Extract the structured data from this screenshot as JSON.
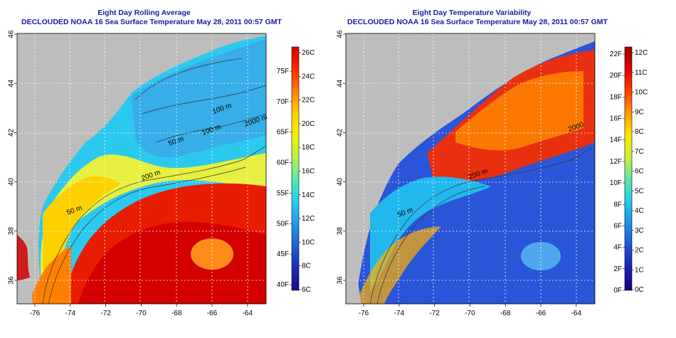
{
  "panels": [
    {
      "id": "left",
      "title_line1": "Eight Day Rolling Average",
      "title_line2": "DECLOUDED NOAA 16 Sea Surface Temperature May 28, 2011 00:57 GMT",
      "x_ticks": [
        "-76",
        "-74",
        "-72",
        "-70",
        "-68",
        "-66",
        "-64"
      ],
      "y_ticks": [
        "36",
        "38",
        "40",
        "42",
        "44",
        "46"
      ],
      "contour_labels": [
        "50 m",
        "200 m",
        "100 m",
        "100 m",
        "2000 m",
        "50 m"
      ],
      "colorbar": {
        "celsius": [
          "26C",
          "24C",
          "22C",
          "20C",
          "18C",
          "16C",
          "14C",
          "12C",
          "10C",
          "8C",
          "6C"
        ],
        "fahrenheit": [
          "75F",
          "70F",
          "65F",
          "60F",
          "55F",
          "50F",
          "45F",
          "40F"
        ],
        "colors": [
          "#d40000",
          "#ff2a00",
          "#ff7f00",
          "#ffd000",
          "#f2f200",
          "#b8f04a",
          "#55e8b0",
          "#22d0ee",
          "#1e9be8",
          "#1f5fd6",
          "#1b2bb8",
          "#1a0a8c"
        ]
      }
    },
    {
      "id": "right",
      "title_line1": "Eight Day Temperature Variability",
      "title_line2": "DECLOUDED NOAA 16 Sea Surface Temperature May 28, 2011 00:57 GMT",
      "x_ticks": [
        "-76",
        "-74",
        "-72",
        "-70",
        "-68",
        "-66",
        "-64"
      ],
      "y_ticks": [
        "36",
        "38",
        "40",
        "42",
        "44",
        "46"
      ],
      "contour_labels": [
        "50 m",
        "200 m",
        "2000"
      ],
      "colorbar": {
        "celsius": [
          "12C",
          "11C",
          "10C",
          "9C",
          "8C",
          "7C",
          "6C",
          "5C",
          "4C",
          "3C",
          "2C",
          "1C",
          "0C"
        ],
        "fahrenheit": [
          "22F",
          "20F",
          "18F",
          "16F",
          "14F",
          "12F",
          "10F",
          "8F",
          "6F",
          "4F",
          "2F",
          "0F"
        ],
        "colors": [
          "#a00000",
          "#e00000",
          "#ff4000",
          "#ff9a00",
          "#ffe600",
          "#c8f03c",
          "#5ae6a8",
          "#1ecbf0",
          "#1e8fe8",
          "#1f52d6",
          "#1a22b4",
          "#14007a"
        ]
      }
    }
  ],
  "colors": {
    "title": "#1a1aa6",
    "land": "#bdbdbd",
    "contour": "#333333",
    "grid": "#ffffff"
  }
}
